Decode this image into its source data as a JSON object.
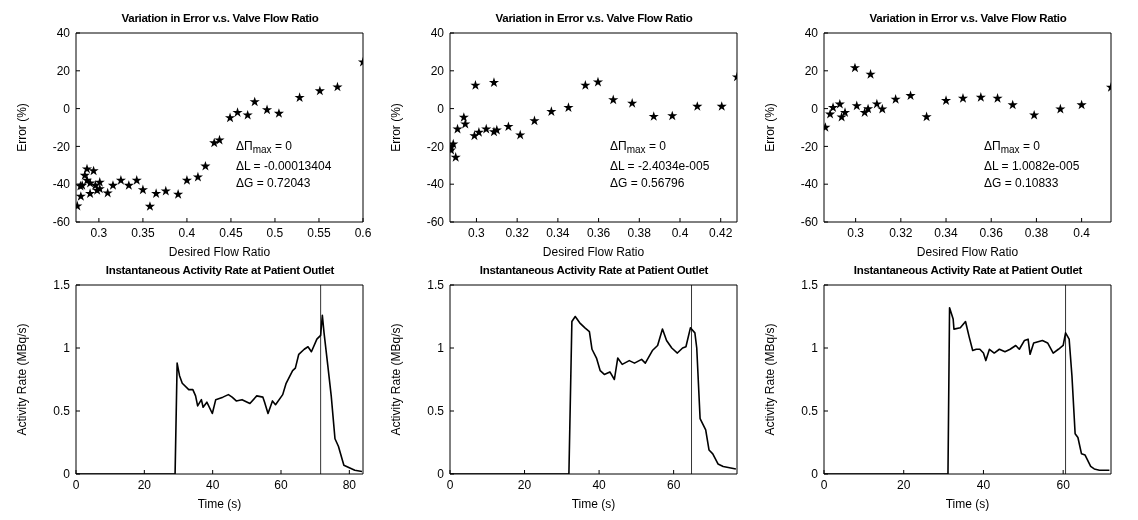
{
  "chart_data": [
    {
      "type": "scatter",
      "title": "Variation in Error v.s. Valve Flow Ratio",
      "xlabel": "Desired Flow Ratio",
      "ylabel": "Error (%)",
      "color": "#000000",
      "marker": "star",
      "x": [
        0.2755,
        0.277,
        0.279,
        0.281,
        0.2795,
        0.284,
        0.2865,
        0.2866,
        0.29,
        0.294,
        0.29,
        0.296,
        0.298,
        0.301,
        0.301,
        0.31,
        0.316,
        0.325,
        0.334,
        0.343,
        0.35,
        0.358,
        0.365,
        0.376,
        0.39,
        0.4,
        0.4125,
        0.421,
        0.431,
        0.437,
        0.449,
        0.4575,
        0.469,
        0.477,
        0.491,
        0.5045,
        0.528,
        0.551,
        0.571,
        0.6
      ],
      "values": [
        -51.6,
        null,
        -41,
        -40.7,
        -46.5,
        -35.4,
        -32,
        -38,
        -39.5,
        -33,
        -45,
        -40.7,
        -43.3,
        -42.5,
        -39,
        -44.7,
        -40.7,
        -38,
        -40.7,
        -38,
        -43,
        -51.8,
        -45,
        -43.7,
        -45.4,
        -38,
        -36.3,
        -30.5,
        -18.2,
        -16.7,
        -4.9,
        -2.1,
        -3.5,
        3.5,
        -0.7,
        -2.6,
        5.8,
        9.3,
        11.4,
        24.6
      ],
      "xlim": [
        0.274,
        0.6
      ],
      "xticks": [
        0.3,
        0.35,
        0.4,
        0.45,
        0.5,
        0.55,
        0.6
      ],
      "ylim": [
        -60,
        40
      ],
      "yticks": [
        -60,
        -40,
        -20,
        0,
        20,
        40
      ],
      "annotations": [
        "ΔΠ$_{max}$ = 0",
        "ΔL = -0.00013404",
        "ΔG = 0.72043"
      ]
    },
    {
      "type": "scatter",
      "title": "Variation in Error v.s. Valve Flow Ratio",
      "xlabel": "Desired Flow Ratio",
      "ylabel": "Error (%)",
      "color": "#000000",
      "marker": "star",
      "x": [
        0.2875,
        0.2875,
        0.2886,
        0.2898,
        0.2907,
        0.2938,
        0.2945,
        0.2995,
        0.299,
        0.3012,
        0.3048,
        0.3086,
        0.3086,
        0.31,
        0.3157,
        0.3215,
        0.3285,
        0.3368,
        0.3452,
        0.3535,
        0.3597,
        0.3672,
        0.3765,
        0.3871,
        0.3962,
        0.4085,
        0.4205,
        0.428
      ],
      "values": [
        -20.5,
        -22,
        -18.8,
        -25.8,
        -10.9,
        -4.7,
        -8.2,
        12.3,
        -14.4,
        -12.6,
        -10.9,
        13.7,
        -12.3,
        -11.4,
        -9.6,
        -14,
        -6.5,
        -1.6,
        0.5,
        12.3,
        14,
        4.6,
        2.8,
        -4.2,
        -3.9,
        1.1,
        1.1,
        16.7
      ],
      "xlim": [
        0.287,
        0.428
      ],
      "xticks": [
        0.3,
        0.32,
        0.34,
        0.36,
        0.38,
        0.4,
        0.42
      ],
      "ylim": [
        -60,
        40
      ],
      "yticks": [
        -60,
        -40,
        -20,
        0,
        20,
        40
      ],
      "annotations": [
        "ΔΠ$_{max}$ = 0",
        "ΔL = -2.4034e-005",
        "ΔG = 0.56796"
      ]
    },
    {
      "type": "scatter",
      "title": "Variation in Error v.s. Valve Flow Ratio",
      "xlabel": "Desired Flow Ratio",
      "ylabel": "Error (%)",
      "color": "#000000",
      "marker": "star",
      "x": [
        0.2866,
        0.2887,
        0.2895,
        0.29,
        0.293,
        0.2938,
        0.2953,
        0.2997,
        0.3005,
        0.304,
        0.3055,
        0.3066,
        0.3094,
        0.3118,
        0.3177,
        0.3243,
        0.3314,
        0.34,
        0.3475,
        0.3554,
        0.3628,
        0.3695,
        0.379,
        0.3906,
        0.4,
        0.413
      ],
      "values": [
        -10,
        -3,
        null,
        0.5,
        2.3,
        -4.5,
        -2.1,
        21.5,
        1.4,
        -2.1,
        -0.2,
        18.1,
        2.4,
        -0.3,
        4.9,
        6.8,
        -4.4,
        4.2,
        5.4,
        5.9,
        5.4,
        1.9,
        -3.5,
        -0.3,
        1.9,
        11.2
      ],
      "xlim": [
        0.286,
        0.413
      ],
      "xticks": [
        0.3,
        0.32,
        0.34,
        0.36,
        0.38,
        0.4
      ],
      "ylim": [
        -60,
        40
      ],
      "yticks": [
        -60,
        -40,
        -20,
        0,
        20,
        40
      ],
      "annotations": [
        "ΔΠ$_{max}$ = 0",
        "ΔL = 1.0082e-005",
        "ΔG = 0.10833"
      ]
    },
    {
      "type": "line",
      "title": "Instantaneous Activity Rate at Patient Outlet",
      "xlabel": "Time (s)",
      "ylabel": "Activity Rate (MBq/s)",
      "color": "#000000",
      "x": [
        0,
        29,
        29.6,
        30.3,
        31.1,
        33,
        34.2,
        35,
        35.6,
        36.7,
        37.2,
        38.3,
        39.9,
        40.9,
        43,
        44.6,
        45.7,
        46.9,
        48.6,
        50.9,
        52.9,
        54.7,
        55.2,
        56.2,
        57.5,
        58.4,
        60.5,
        61.5,
        63.4,
        64.2,
        65.2,
        66.8,
        67.9,
        68.9,
        70.5,
        71.6,
        72.1,
        72.6,
        73.7,
        74.7,
        75.8,
        76.8,
        78.4,
        80,
        81.6,
        83.7
      ],
      "values": [
        0,
        0,
        0.88,
        0.78,
        0.72,
        0.67,
        0.67,
        0.62,
        0.54,
        0.59,
        0.53,
        0.57,
        0.48,
        0.59,
        0.61,
        0.63,
        0.61,
        0.58,
        0.59,
        0.56,
        0.62,
        0.61,
        0.57,
        0.48,
        0.58,
        0.55,
        0.63,
        0.72,
        0.82,
        0.84,
        0.95,
        0.99,
        1.01,
        0.97,
        1.07,
        1.1,
        1.26,
        1.12,
        0.86,
        0.62,
        0.28,
        0.22,
        0.07,
        0.05,
        0.03,
        0.02
      ],
      "xlim": [
        0,
        84
      ],
      "xticks": [
        0,
        20,
        40,
        60,
        80
      ],
      "ylim": [
        0,
        1.5
      ],
      "yticks": [
        0,
        0.5,
        1,
        1.5
      ],
      "ref_lines": [
        {
          "axis": "x",
          "value": 71.6
        }
      ]
    },
    {
      "type": "line",
      "title": "Instantaneous Activity Rate at Patient Outlet",
      "xlabel": "Time (s)",
      "ylabel": "Activity Rate (MBq/s)",
      "color": "#000000",
      "x": [
        0,
        31.9,
        32.7,
        33.6,
        34.8,
        36.2,
        37.4,
        38.1,
        39.3,
        40.3,
        41.4,
        42.9,
        44.1,
        45,
        46.2,
        48.1,
        49.5,
        51.4,
        52.4,
        54.3,
        55.7,
        57,
        58.1,
        59.5,
        61,
        62.4,
        63.3,
        64.5,
        65.7,
        66.2,
        67.1,
        68.6,
        69.5,
        70.5,
        71.9,
        73.3,
        76.7
      ],
      "values": [
        0,
        0,
        1.21,
        1.25,
        1.2,
        1.16,
        1.13,
        0.99,
        0.92,
        0.82,
        0.79,
        0.81,
        0.75,
        0.92,
        0.87,
        0.9,
        0.88,
        0.91,
        0.88,
        0.98,
        1.02,
        1.15,
        1.06,
        1,
        0.96,
        1,
        1.01,
        1.16,
        1.12,
        1,
        0.44,
        0.35,
        0.19,
        0.16,
        0.08,
        0.06,
        0.04
      ],
      "xlim": [
        0,
        77
      ],
      "xticks": [
        0,
        20,
        40,
        60
      ],
      "ylim": [
        0,
        1.5
      ],
      "yticks": [
        0,
        0.5,
        1,
        1.5
      ],
      "ref_lines": [
        {
          "axis": "x",
          "value": 64.8
        }
      ]
    },
    {
      "type": "line",
      "title": "Instantaneous Activity Rate at Patient Outlet",
      "xlabel": "Time (s)",
      "ylabel": "Activity Rate (MBq/s)",
      "color": "#000000",
      "x": [
        0,
        31.1,
        31.5,
        32.4,
        32.6,
        34.2,
        35.5,
        36.4,
        37.3,
        38.2,
        39.1,
        40,
        40.6,
        41.5,
        42.7,
        44,
        45.4,
        46.7,
        48.1,
        49,
        50.3,
        51.2,
        51.7,
        52.6,
        54.8,
        56.1,
        57.5,
        58.8,
        60,
        60.6,
        61.5,
        62.2,
        63,
        63.7,
        64.6,
        65.5,
        66.9,
        67.8,
        69.1,
        71.6
      ],
      "values": [
        0,
        0,
        1.32,
        1.23,
        1.15,
        1.16,
        1.21,
        1.09,
        0.98,
        0.99,
        0.99,
        0.96,
        0.9,
        0.99,
        0.96,
        0.99,
        0.97,
        0.99,
        1.02,
        0.99,
        1.06,
        1.07,
        0.95,
        1.04,
        1.06,
        1.04,
        0.96,
        0.99,
        1.02,
        1.12,
        1.07,
        0.78,
        0.32,
        0.29,
        0.16,
        0.15,
        0.06,
        0.04,
        0.03,
        0.03
      ],
      "xlim": [
        0,
        72
      ],
      "xticks": [
        0,
        20,
        40,
        60
      ],
      "ylim": [
        0,
        1.5
      ],
      "yticks": [
        0,
        0.5,
        1,
        1.5
      ],
      "ref_lines": [
        {
          "axis": "x",
          "value": 60.6
        }
      ]
    }
  ]
}
